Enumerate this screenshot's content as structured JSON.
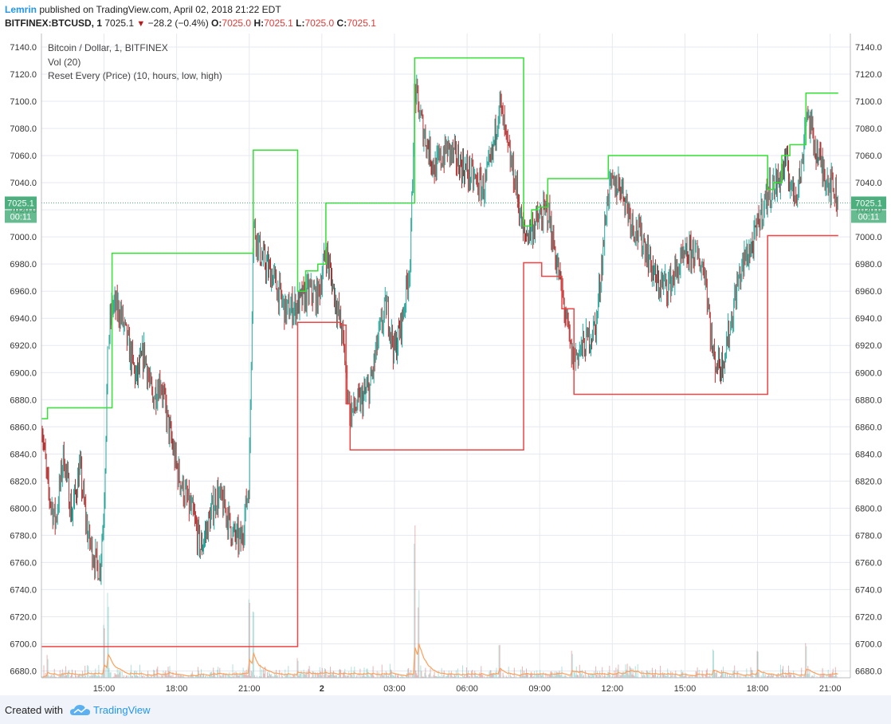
{
  "header": {
    "author": "Lemrin",
    "published_text": "published on TradingView.com, April 02, 2018 21:22 EDT",
    "symbol": "BITFINEX:BTCUSD, 1",
    "last_price": "7025.1",
    "change": "−28.2 (−0.4%)",
    "ohlc": {
      "o_label": "O:",
      "o": "7025.0",
      "h_label": "H:",
      "h": "7025.1",
      "l_label": "L:",
      "l": "7025.0",
      "c_label": "C:",
      "c": "7025.1"
    }
  },
  "legend": {
    "line1": "Bitcoin / Dollar, 1, BITFINEX",
    "line2": "Vol (20)",
    "line3": "Reset Every (Price) (10, hours, low, high)"
  },
  "badges": {
    "price": "7025.1",
    "countdown": "00:11"
  },
  "footer": {
    "created_with": "Created with",
    "brand": "TradingView"
  },
  "colors": {
    "high_line": "#33e033",
    "low_line": "#ef4444",
    "candle_up": "#26a69a",
    "candle_down": "#b33030",
    "vol_ma": "#ff9f5a",
    "badge": "#4caf7d",
    "grid": "#e6e9f0"
  },
  "chart_data": {
    "type": "line",
    "xlabel": "",
    "ylabel": "",
    "ylim": [
      6675,
      7150
    ],
    "y_ticks": [
      7140.0,
      7120.0,
      7100.0,
      7080.0,
      7060.0,
      7040.0,
      7020.0,
      7000.0,
      6980.0,
      6960.0,
      6940.0,
      6920.0,
      6900.0,
      6880.0,
      6860.0,
      6840.0,
      6820.0,
      6800.0,
      6780.0,
      6760.0,
      6740.0,
      6720.0,
      6700.0,
      6680.0
    ],
    "y_tick_labels": [
      "7140.0",
      "7120.0",
      "7100.0",
      "7080.0",
      "7060.0",
      "7040.0",
      "7020.0",
      "7000.0",
      "6980.0",
      "6960.0",
      "6940.0",
      "6920.0",
      "6900.0",
      "6880.0",
      "6860.0",
      "6840.0",
      "6820.0",
      "6800.0",
      "6780.0",
      "6760.0",
      "6740.0",
      "6720.0",
      "6700.0",
      "6680.0"
    ],
    "x_range": [
      "2018-04-01 12:25",
      "2018-04-02 21:50"
    ],
    "x_ticks": [
      {
        "t": "2018-04-01 15:00",
        "label": "15:00"
      },
      {
        "t": "2018-04-01 18:00",
        "label": "18:00"
      },
      {
        "t": "2018-04-01 21:00",
        "label": "21:00"
      },
      {
        "t": "2018-04-02 00:00",
        "label": "2"
      },
      {
        "t": "2018-04-02 03:00",
        "label": "03:00"
      },
      {
        "t": "2018-04-02 06:00",
        "label": "06:00"
      },
      {
        "t": "2018-04-02 09:00",
        "label": "09:00"
      },
      {
        "t": "2018-04-02 12:00",
        "label": "12:00"
      },
      {
        "t": "2018-04-02 15:00",
        "label": "15:00"
      },
      {
        "t": "2018-04-02 18:00",
        "label": "18:00"
      },
      {
        "t": "2018-04-02 21:00",
        "label": "21:00"
      }
    ],
    "grid": true,
    "last_price_line": 7025.1,
    "series": [
      {
        "name": "",
        "style": "step",
        "color": "#33e033",
        "points": [
          [
            "2018-04-01 12:25",
            6866
          ],
          [
            "2018-04-01 12:40",
            6874
          ],
          [
            "2018-04-01 15:20",
            6988
          ],
          [
            "2018-04-01 21:10",
            7064
          ],
          [
            "2018-04-01 23:00",
            6960
          ],
          [
            "2018-04-01 23:20",
            6975
          ],
          [
            "2018-04-01 23:50",
            6980
          ],
          [
            "2018-04-02 00:10",
            7025
          ],
          [
            "2018-04-02 03:50",
            7132
          ],
          [
            "2018-04-02 08:20",
            7008
          ],
          [
            "2018-04-02 08:40",
            7020
          ],
          [
            "2018-04-02 08:55",
            7022
          ],
          [
            "2018-04-02 09:20",
            7043
          ],
          [
            "2018-04-02 11:50",
            7060
          ],
          [
            "2018-04-02 18:20",
            7060
          ],
          [
            "2018-04-02 18:25",
            7035
          ],
          [
            "2018-04-02 18:40",
            7040
          ],
          [
            "2018-04-02 19:00",
            7060
          ],
          [
            "2018-04-02 19:20",
            7068
          ],
          [
            "2018-04-02 20:00",
            7106
          ],
          [
            "2018-04-02 21:20",
            7106
          ]
        ]
      },
      {
        "name": "",
        "style": "step",
        "color": "#ef4444",
        "points": [
          [
            "2018-04-01 12:25",
            6698
          ],
          [
            "2018-04-01 23:00",
            6937
          ],
          [
            "2018-04-02 00:45",
            6935
          ],
          [
            "2018-04-02 01:00",
            6877
          ],
          [
            "2018-04-02 01:10",
            6843
          ],
          [
            "2018-04-02 08:20",
            6981
          ],
          [
            "2018-04-02 09:05",
            6971
          ],
          [
            "2018-04-02 09:55",
            6947
          ],
          [
            "2018-04-02 10:25",
            6884
          ],
          [
            "2018-04-02 18:25",
            7001
          ],
          [
            "2018-04-02 21:20",
            7001
          ]
        ]
      },
      {
        "name": "",
        "style": "candles",
        "path": [
          [
            "2018-04-01 12:25",
            6866
          ],
          [
            "2018-04-01 12:40",
            6815
          ],
          [
            "2018-04-01 13:00",
            6790
          ],
          [
            "2018-04-01 13:20",
            6840
          ],
          [
            "2018-04-01 13:40",
            6795
          ],
          [
            "2018-04-01 14:00",
            6830
          ],
          [
            "2018-04-01 14:20",
            6780
          ],
          [
            "2018-04-01 14:40",
            6760
          ],
          [
            "2018-04-01 14:50",
            6755
          ],
          [
            "2018-04-01 15:00",
            6800
          ],
          [
            "2018-04-01 15:10",
            6920
          ],
          [
            "2018-04-01 15:20",
            6950
          ],
          [
            "2018-04-01 15:40",
            6945
          ],
          [
            "2018-04-01 16:00",
            6920
          ],
          [
            "2018-04-01 16:20",
            6895
          ],
          [
            "2018-04-01 16:40",
            6915
          ],
          [
            "2018-04-01 17:00",
            6880
          ],
          [
            "2018-04-01 17:20",
            6895
          ],
          [
            "2018-04-01 17:40",
            6860
          ],
          [
            "2018-04-01 18:00",
            6830
          ],
          [
            "2018-04-01 18:20",
            6810
          ],
          [
            "2018-04-01 18:40",
            6795
          ],
          [
            "2018-04-01 19:00",
            6770
          ],
          [
            "2018-04-01 19:20",
            6790
          ],
          [
            "2018-04-01 19:40",
            6810
          ],
          [
            "2018-04-01 20:00",
            6800
          ],
          [
            "2018-04-01 20:20",
            6780
          ],
          [
            "2018-04-01 20:40",
            6775
          ],
          [
            "2018-04-01 21:00",
            6820
          ],
          [
            "2018-04-01 21:10",
            7010
          ],
          [
            "2018-04-01 21:30",
            6985
          ],
          [
            "2018-04-01 22:00",
            6970
          ],
          [
            "2018-04-01 22:30",
            6945
          ],
          [
            "2018-04-01 23:00",
            6950
          ],
          [
            "2018-04-01 23:30",
            6960
          ],
          [
            "2018-04-01 23:50",
            6955
          ],
          [
            "2018-04-02 00:10",
            6990
          ],
          [
            "2018-04-02 00:30",
            6960
          ],
          [
            "2018-04-02 00:50",
            6930
          ],
          [
            "2018-04-02 01:10",
            6870
          ],
          [
            "2018-04-02 01:40",
            6880
          ],
          [
            "2018-04-02 02:00",
            6890
          ],
          [
            "2018-04-02 02:20",
            6925
          ],
          [
            "2018-04-02 02:40",
            6950
          ],
          [
            "2018-04-02 03:00",
            6915
          ],
          [
            "2018-04-02 03:20",
            6940
          ],
          [
            "2018-04-02 03:40",
            6985
          ],
          [
            "2018-04-02 03:50",
            7110
          ],
          [
            "2018-04-02 04:10",
            7080
          ],
          [
            "2018-04-02 04:40",
            7050
          ],
          [
            "2018-04-02 05:10",
            7065
          ],
          [
            "2018-04-02 05:40",
            7055
          ],
          [
            "2018-04-02 06:10",
            7045
          ],
          [
            "2018-04-02 06:40",
            7035
          ],
          [
            "2018-04-02 07:00",
            7055
          ],
          [
            "2018-04-02 07:20",
            7100
          ],
          [
            "2018-04-02 07:40",
            7065
          ],
          [
            "2018-04-02 08:00",
            7040
          ],
          [
            "2018-04-02 08:20",
            7000
          ],
          [
            "2018-04-02 08:50",
            7010
          ],
          [
            "2018-04-02 09:20",
            7020
          ],
          [
            "2018-04-02 09:40",
            6985
          ],
          [
            "2018-04-02 10:00",
            6950
          ],
          [
            "2018-04-02 10:20",
            6910
          ],
          [
            "2018-04-02 10:50",
            6920
          ],
          [
            "2018-04-02 11:20",
            6935
          ],
          [
            "2018-04-02 11:50",
            7035
          ],
          [
            "2018-04-02 12:20",
            7040
          ],
          [
            "2018-04-02 12:50",
            7010
          ],
          [
            "2018-04-02 13:20",
            6995
          ],
          [
            "2018-04-02 13:50",
            6965
          ],
          [
            "2018-04-02 14:20",
            6965
          ],
          [
            "2018-04-02 14:50",
            6980
          ],
          [
            "2018-04-02 15:20",
            6990
          ],
          [
            "2018-04-02 15:50",
            6975
          ],
          [
            "2018-04-02 16:10",
            6910
          ],
          [
            "2018-04-02 16:30",
            6905
          ],
          [
            "2018-04-02 16:50",
            6930
          ],
          [
            "2018-04-02 17:10",
            6965
          ],
          [
            "2018-04-02 17:30",
            6985
          ],
          [
            "2018-04-02 17:50",
            6995
          ],
          [
            "2018-04-02 18:10",
            7020
          ],
          [
            "2018-04-02 18:30",
            7035
          ],
          [
            "2018-04-02 18:50",
            7040
          ],
          [
            "2018-04-02 19:10",
            7055
          ],
          [
            "2018-04-02 19:30",
            7030
          ],
          [
            "2018-04-02 19:50",
            7050
          ],
          [
            "2018-04-02 20:00",
            7095
          ],
          [
            "2018-04-02 20:20",
            7070
          ],
          [
            "2018-04-02 20:40",
            7050
          ],
          [
            "2018-04-02 21:00",
            7040
          ],
          [
            "2018-04-02 21:10",
            7035
          ],
          [
            "2018-04-02 21:20",
            7025.1
          ]
        ]
      },
      {
        "name": "Vol (20)",
        "style": "volume",
        "spikes": [
          [
            "2018-04-01 12:40",
            0.15
          ],
          [
            "2018-04-01 14:20",
            0.1
          ],
          [
            "2018-04-01 15:00",
            0.35
          ],
          [
            "2018-04-01 15:10",
            0.55
          ],
          [
            "2018-04-01 21:00",
            0.5
          ],
          [
            "2018-04-01 21:10",
            0.45
          ],
          [
            "2018-04-01 23:00",
            0.15
          ],
          [
            "2018-04-02 03:50",
            1.0
          ],
          [
            "2018-04-02 04:00",
            0.6
          ],
          [
            "2018-04-02 07:20",
            0.25
          ],
          [
            "2018-04-02 10:20",
            0.18
          ],
          [
            "2018-04-02 16:10",
            0.18
          ],
          [
            "2018-04-02 18:00",
            0.2
          ],
          [
            "2018-04-02 20:00",
            0.22
          ]
        ]
      }
    ]
  }
}
